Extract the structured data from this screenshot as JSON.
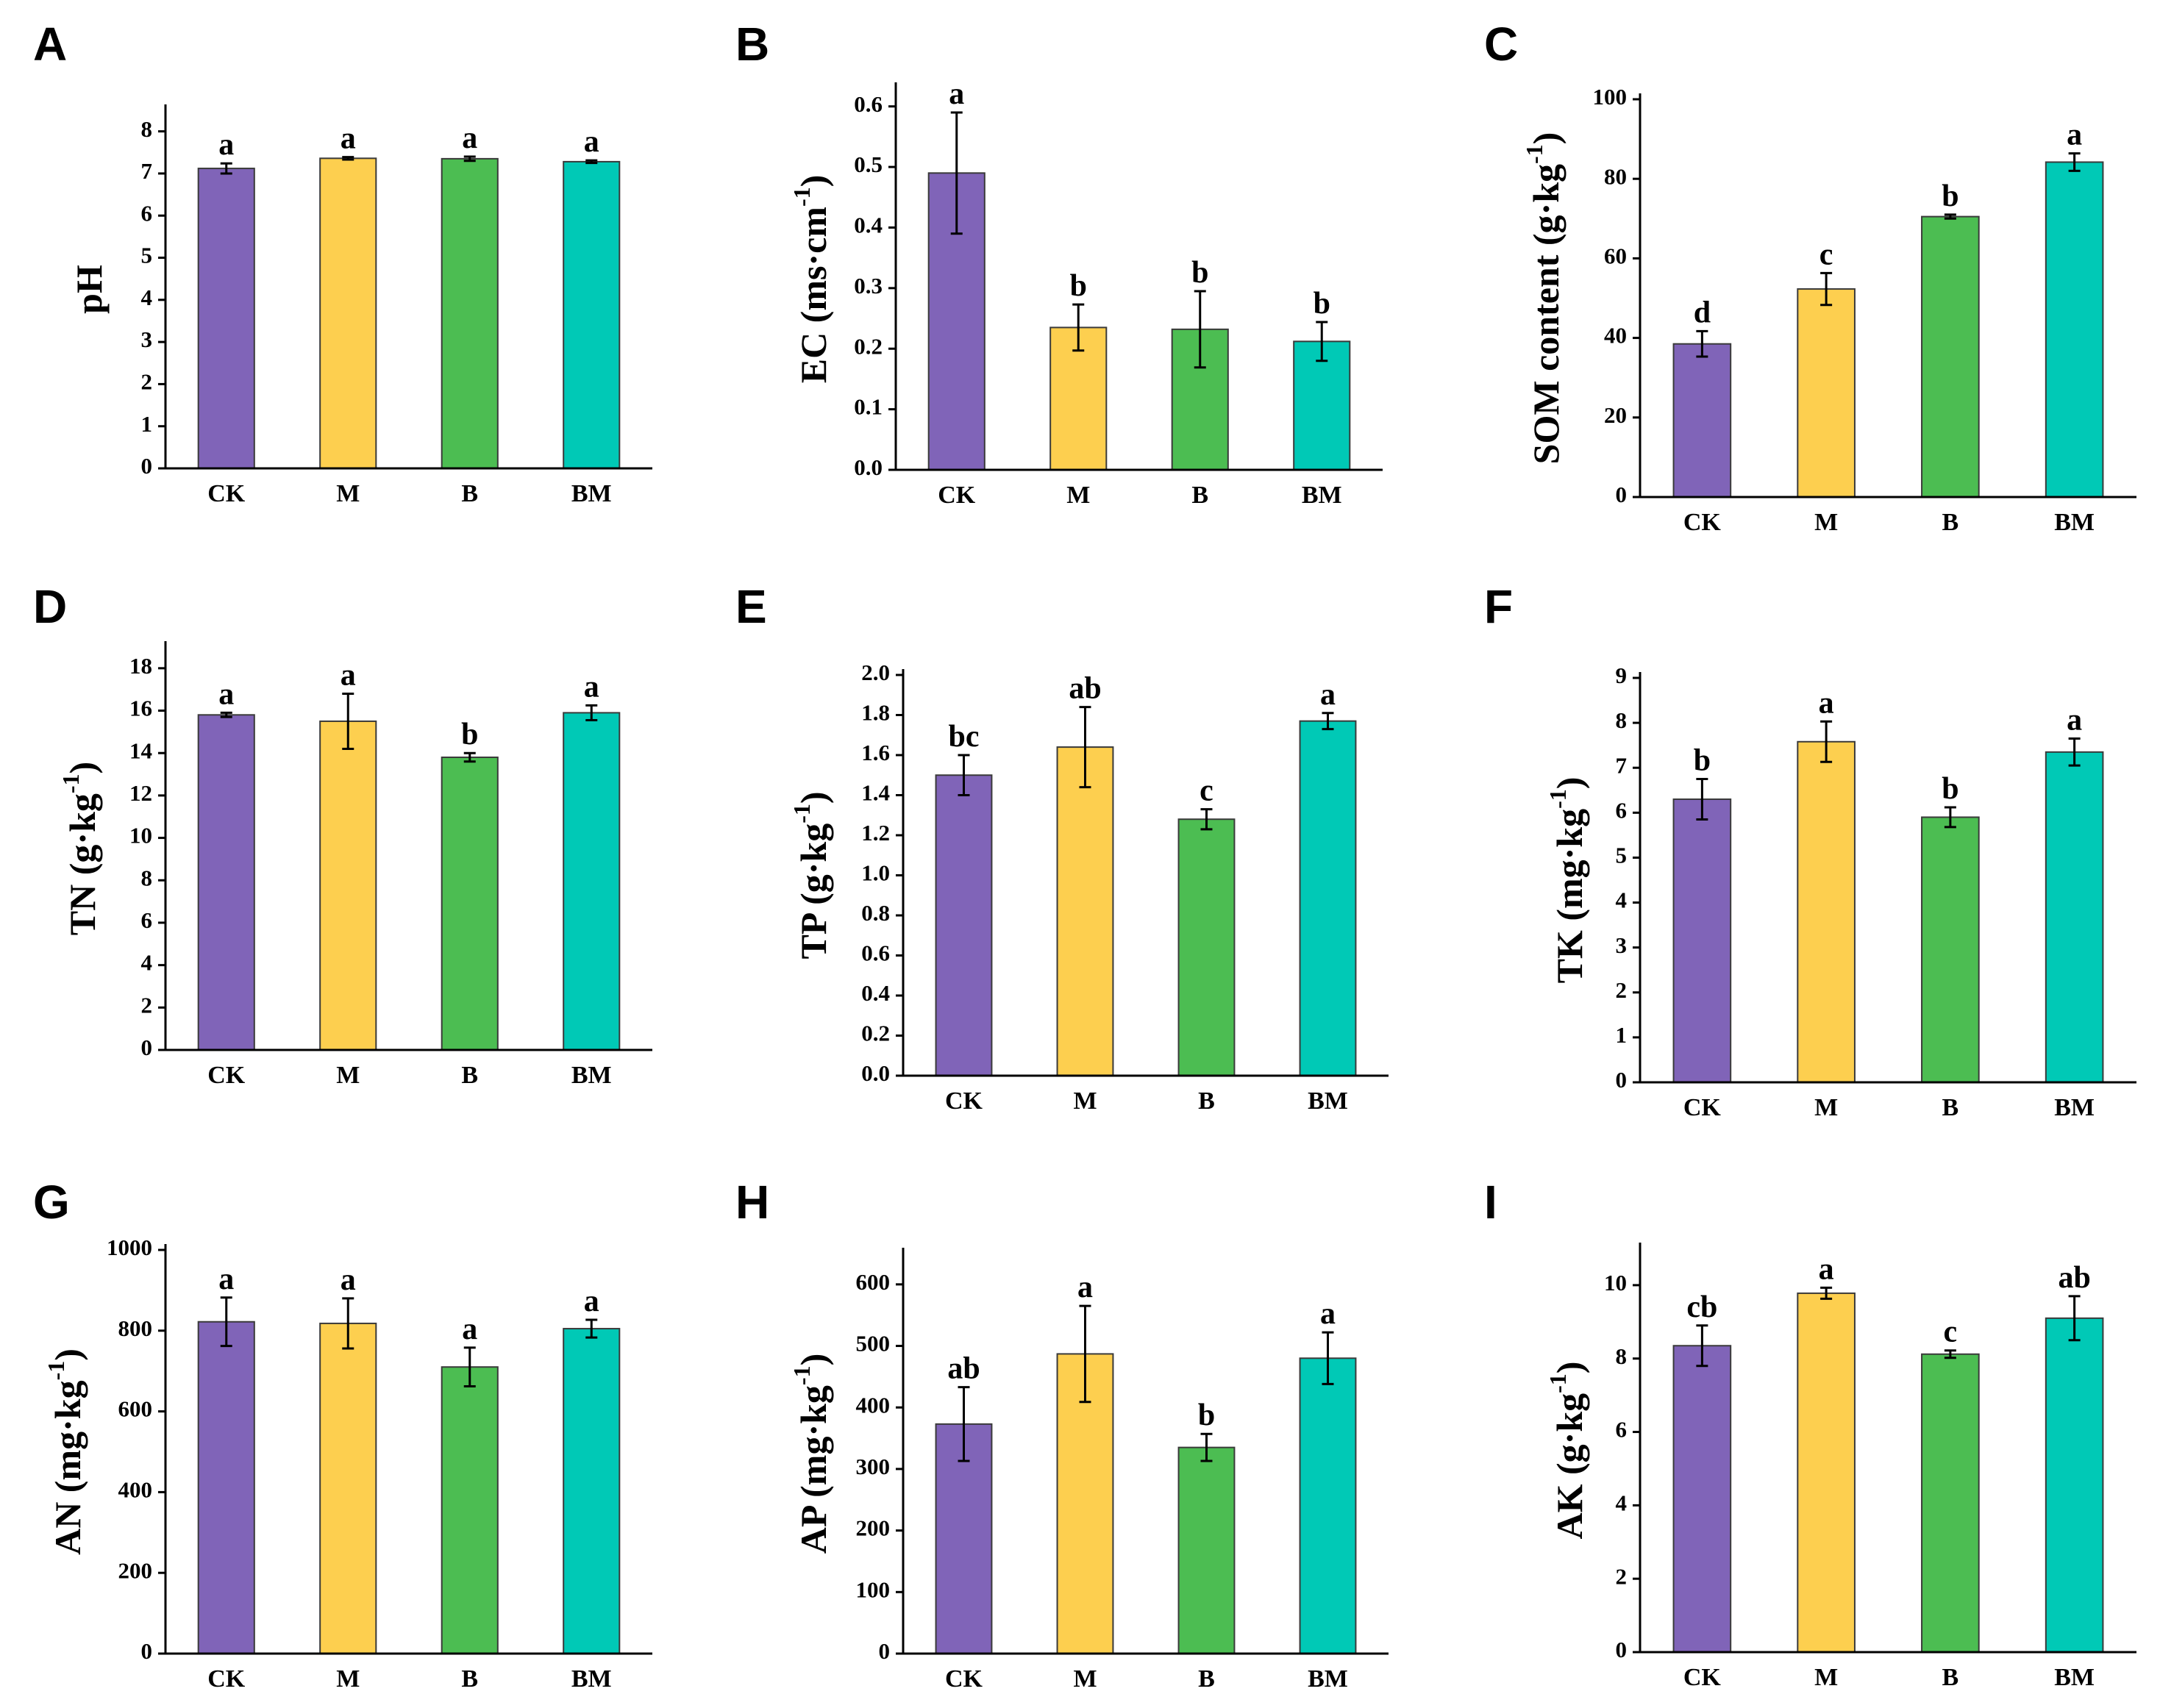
{
  "colors": {
    "CK": "#8064b8",
    "M": "#fdcf4f",
    "B": "#4cbd52",
    "BM": "#00c9b6"
  },
  "chart_data": [
    {
      "type": "bar",
      "panel": "A",
      "ylabel": "pH",
      "ylabel_sup": "",
      "categories": [
        "CK",
        "M",
        "B",
        "BM"
      ],
      "values": [
        7.12,
        7.36,
        7.35,
        7.28
      ],
      "errors": [
        0.12,
        0.03,
        0.05,
        0.03
      ],
      "significance": [
        "a",
        "a",
        "a",
        "a"
      ],
      "ylim": [
        0,
        8.5
      ],
      "yticks": [
        0,
        1,
        2,
        3,
        4,
        5,
        6,
        7,
        8
      ],
      "ytick_labels": [
        "0",
        "1",
        "2",
        "3",
        "4",
        "5",
        "6",
        "7",
        "8"
      ]
    },
    {
      "type": "bar",
      "panel": "B",
      "ylabel": "EC (ms·cm",
      "ylabel_sup": "-1",
      "ylabel_end": ")",
      "categories": [
        "CK",
        "M",
        "B",
        "BM"
      ],
      "values": [
        0.49,
        0.235,
        0.232,
        0.212
      ],
      "errors": [
        0.1,
        0.038,
        0.063,
        0.032
      ],
      "significance": [
        "a",
        "b",
        "b",
        "b"
      ],
      "ylim": [
        0,
        0.63
      ],
      "yticks": [
        0,
        0.1,
        0.2,
        0.3,
        0.4,
        0.5,
        0.6
      ],
      "ytick_labels": [
        "0.0",
        "0.1",
        "0.2",
        "0.3",
        "0.4",
        "0.5",
        "0.6"
      ]
    },
    {
      "type": "bar",
      "panel": "C",
      "ylabel": "SOM content (g·kg",
      "ylabel_sup": "-1",
      "ylabel_end": ")",
      "categories": [
        "CK",
        "M",
        "B",
        "BM"
      ],
      "values": [
        38.5,
        52.3,
        70.5,
        84.2
      ],
      "errors": [
        3.2,
        4.0,
        0.5,
        2.2
      ],
      "significance": [
        "d",
        "c",
        "b",
        "a"
      ],
      "ylim": [
        0,
        100
      ],
      "yticks": [
        0,
        20,
        40,
        60,
        80,
        100
      ],
      "ytick_labels": [
        "0",
        "20",
        "40",
        "60",
        "80",
        "100"
      ]
    },
    {
      "type": "bar",
      "panel": "D",
      "ylabel": "TN (g·kg",
      "ylabel_sup": "-1",
      "ylabel_end": ")",
      "categories": [
        "CK",
        "M",
        "B",
        "BM"
      ],
      "values": [
        15.8,
        15.5,
        13.8,
        15.9
      ],
      "errors": [
        0.1,
        1.3,
        0.2,
        0.35
      ],
      "significance": [
        "a",
        "a",
        "b",
        "a"
      ],
      "ylim": [
        0,
        19
      ],
      "yticks": [
        0,
        2,
        4,
        6,
        8,
        10,
        12,
        14,
        16,
        18
      ],
      "ytick_labels": [
        "0",
        "2",
        "4",
        "6",
        "8",
        "10",
        "12",
        "14",
        "16",
        "18"
      ]
    },
    {
      "type": "bar",
      "panel": "E",
      "ylabel": "TP (g·kg",
      "ylabel_sup": "-1",
      "ylabel_end": ")",
      "categories": [
        "CK",
        "M",
        "B",
        "BM"
      ],
      "values": [
        1.5,
        1.64,
        1.28,
        1.77
      ],
      "errors": [
        0.1,
        0.2,
        0.05,
        0.04
      ],
      "significance": [
        "bc",
        "ab",
        "c",
        "a"
      ],
      "ylim": [
        0,
        2.0
      ],
      "yticks": [
        0,
        0.2,
        0.4,
        0.6,
        0.8,
        1.0,
        1.2,
        1.4,
        1.6,
        1.8,
        2.0
      ],
      "ytick_labels": [
        "0.0",
        "0.2",
        "0.4",
        "0.6",
        "0.8",
        "1.0",
        "1.2",
        "1.4",
        "1.6",
        "1.8",
        "2.0"
      ]
    },
    {
      "type": "bar",
      "panel": "F",
      "ylabel": "TK (mg·kg",
      "ylabel_sup": "-1",
      "ylabel_end": ")",
      "categories": [
        "CK",
        "M",
        "B",
        "BM"
      ],
      "values": [
        6.3,
        7.58,
        5.9,
        7.35
      ],
      "errors": [
        0.45,
        0.45,
        0.22,
        0.3
      ],
      "significance": [
        "b",
        "a",
        "b",
        "a"
      ],
      "ylim": [
        0,
        9
      ],
      "yticks": [
        0,
        1,
        2,
        3,
        4,
        5,
        6,
        7,
        8,
        9
      ],
      "ytick_labels": [
        "0",
        "1",
        "2",
        "3",
        "4",
        "5",
        "6",
        "7",
        "8",
        "9"
      ]
    },
    {
      "type": "bar",
      "panel": "G",
      "ylabel": "AN (mg·kg",
      "ylabel_sup": "-1",
      "ylabel_end": ")",
      "categories": [
        "CK",
        "M",
        "B",
        "BM"
      ],
      "values": [
        822,
        818,
        710,
        805
      ],
      "errors": [
        60,
        62,
        48,
        22
      ],
      "significance": [
        "a",
        "a",
        "a",
        "a"
      ],
      "ylim": [
        0,
        1000
      ],
      "yticks": [
        0,
        200,
        400,
        600,
        800,
        1000
      ],
      "ytick_labels": [
        "0",
        "200",
        "400",
        "600",
        "800",
        "1000"
      ]
    },
    {
      "type": "bar",
      "panel": "H",
      "ylabel": "AP (mg·kg",
      "ylabel_sup": "-1",
      "ylabel_end": ")",
      "categories": [
        "CK",
        "M",
        "B",
        "BM"
      ],
      "values": [
        373,
        487,
        335,
        480
      ],
      "errors": [
        60,
        78,
        22,
        42
      ],
      "significance": [
        "ab",
        "a",
        "b",
        "a"
      ],
      "ylim": [
        0,
        650
      ],
      "yticks": [
        0,
        100,
        200,
        300,
        400,
        500,
        600
      ],
      "ytick_labels": [
        "0",
        "100",
        "200",
        "300",
        "400",
        "500",
        "600"
      ]
    },
    {
      "type": "bar",
      "panel": "I",
      "ylabel": "AK (g·kg",
      "ylabel_sup": "-1",
      "ylabel_end": ")",
      "categories": [
        "CK",
        "M",
        "B",
        "BM"
      ],
      "values": [
        8.35,
        9.78,
        8.12,
        9.1
      ],
      "errors": [
        0.55,
        0.15,
        0.1,
        0.6
      ],
      "significance": [
        "cb",
        "a",
        "c",
        "ab"
      ],
      "ylim": [
        0,
        11
      ],
      "yticks": [
        0,
        2,
        4,
        6,
        8,
        10
      ],
      "ytick_labels": [
        "0",
        "2",
        "4",
        "6",
        "8",
        "10"
      ]
    }
  ]
}
